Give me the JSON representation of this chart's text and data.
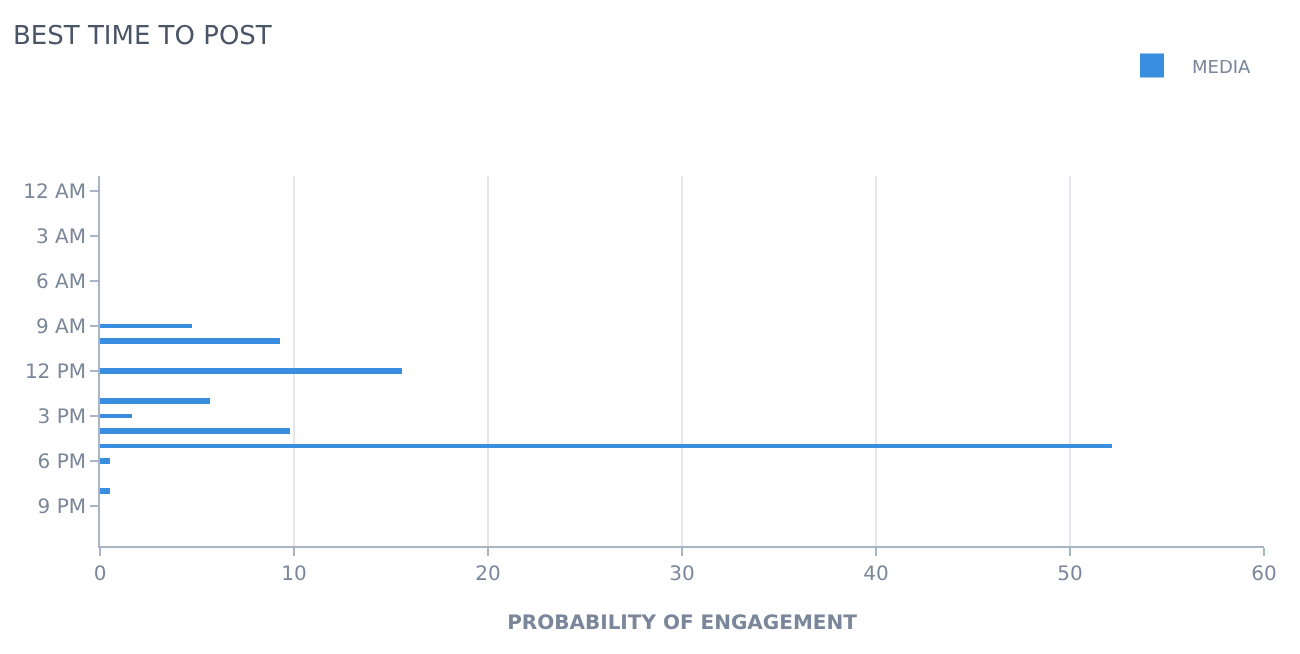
{
  "chart_data": {
    "type": "bar",
    "orientation": "horizontal",
    "title": "BEST TIME TO POST",
    "xlabel": "PROBABILITY OF ENGAGEMENT",
    "categories": [
      "12 AM",
      null,
      null,
      "3 AM",
      null,
      null,
      "6 AM",
      null,
      null,
      "9 AM",
      null,
      null,
      "12 PM",
      null,
      null,
      "3 PM",
      null,
      null,
      "6 PM",
      null,
      null,
      "9 PM",
      null,
      null
    ],
    "series": [
      {
        "name": "MEDIA",
        "color": "#3a8ee0",
        "values": [
          0,
          0,
          0,
          0,
          0,
          0,
          0,
          0,
          0,
          4.7,
          9.3,
          0,
          15.6,
          0,
          5.7,
          1.6,
          9.8,
          52.2,
          0.5,
          0,
          0.5,
          0,
          0,
          0
        ]
      }
    ],
    "xlim": [
      0,
      60
    ],
    "xticks": [
      0,
      10,
      20,
      30,
      40,
      50,
      60
    ],
    "grid": "x",
    "legend": "top right"
  }
}
